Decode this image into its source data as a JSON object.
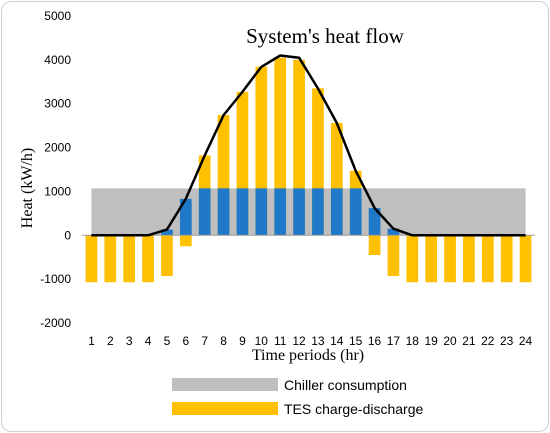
{
  "chart_data": {
    "type": "bar",
    "title": "System's heat flow",
    "xlabel": "Time periods (hr)",
    "ylabel": "Heat (kW/h)",
    "ylim": [
      -2000,
      5000
    ],
    "yticks": [
      -2000,
      -1000,
      0,
      1000,
      2000,
      3000,
      4000,
      5000
    ],
    "categories": [
      "1",
      "2",
      "3",
      "4",
      "5",
      "6",
      "7",
      "8",
      "9",
      "10",
      "11",
      "12",
      "13",
      "14",
      "15",
      "16",
      "17",
      "18",
      "19",
      "20",
      "21",
      "22",
      "23",
      "24"
    ],
    "grid": false,
    "legend_position": "bottom",
    "series": [
      {
        "name": "Chiller consumption",
        "type": "area",
        "color": "#bfbfbf",
        "values": [
          1070,
          1070,
          1070,
          1070,
          1070,
          1070,
          1070,
          1070,
          1070,
          1070,
          1070,
          1070,
          1070,
          1070,
          1070,
          1070,
          1070,
          1070,
          1070,
          1070,
          1070,
          1070,
          1070,
          1070
        ]
      },
      {
        "name": "TES charge-discharge",
        "type": "bar",
        "color": "#ffc000",
        "values": [
          -1070,
          -1070,
          -1070,
          -1070,
          -930,
          -250,
          1820,
          2740,
          3270,
          3840,
          4050,
          4000,
          3350,
          2560,
          1470,
          -450,
          -930,
          -1070,
          -1070,
          -1070,
          -1070,
          -1070,
          -1070,
          -1070
        ]
      },
      {
        "type": "bar",
        "color": "#1f78c8",
        "values": [
          0,
          0,
          0,
          0,
          130,
          830,
          1070,
          1070,
          1070,
          1070,
          1070,
          1070,
          1070,
          1070,
          1070,
          620,
          150,
          0,
          0,
          0,
          0,
          0,
          0,
          0
        ]
      },
      {
        "type": "line",
        "color": "#000000",
        "values": [
          0,
          0,
          0,
          0,
          130,
          830,
          1820,
          2740,
          3270,
          3840,
          4100,
          4050,
          3350,
          2560,
          1470,
          620,
          150,
          0,
          0,
          0,
          0,
          0,
          0,
          0
        ]
      }
    ]
  }
}
